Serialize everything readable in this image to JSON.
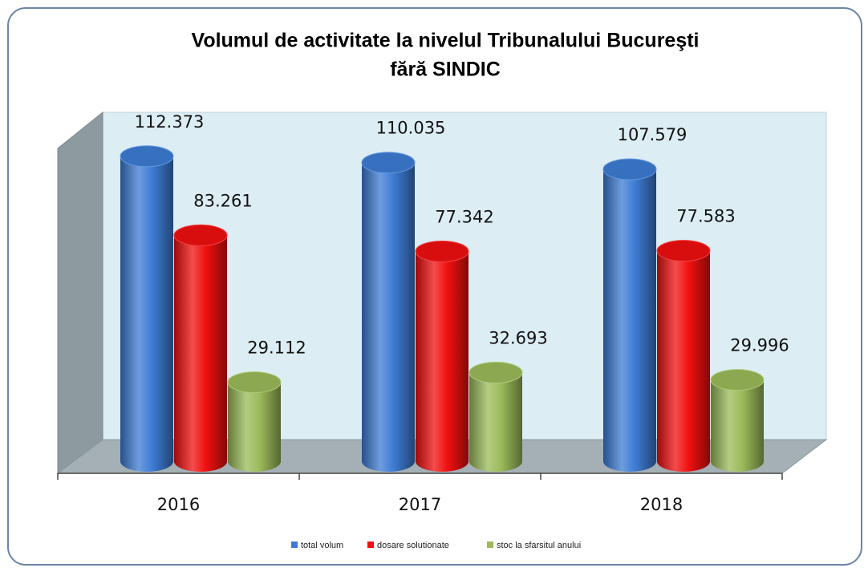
{
  "chart_data": {
    "type": "bar3d",
    "title": "Volumul de activitate la nivelul Tribunalului Bucureşti",
    "subtitle": "fără SINDIC",
    "categories": [
      "2016",
      "2017",
      "2018"
    ],
    "series": [
      {
        "name": "total volum",
        "color": "#3d7cd4",
        "values": [
          112373,
          110035,
          107579
        ],
        "value_labels": [
          "112.373",
          "110.035",
          "107.579"
        ]
      },
      {
        "name": "dosare solutionate",
        "color": "#f01010",
        "values": [
          83261,
          77342,
          77583
        ],
        "value_labels": [
          "83.261",
          "77.342",
          "77.583"
        ]
      },
      {
        "name": "stoc la sfarsitul anului",
        "color": "#9bbb59",
        "values": [
          29112,
          32693,
          29996
        ],
        "value_labels": [
          "29.112",
          "32.693",
          "29.996"
        ]
      }
    ],
    "ylim": [
      0,
      120000
    ],
    "legend": "bottom"
  }
}
